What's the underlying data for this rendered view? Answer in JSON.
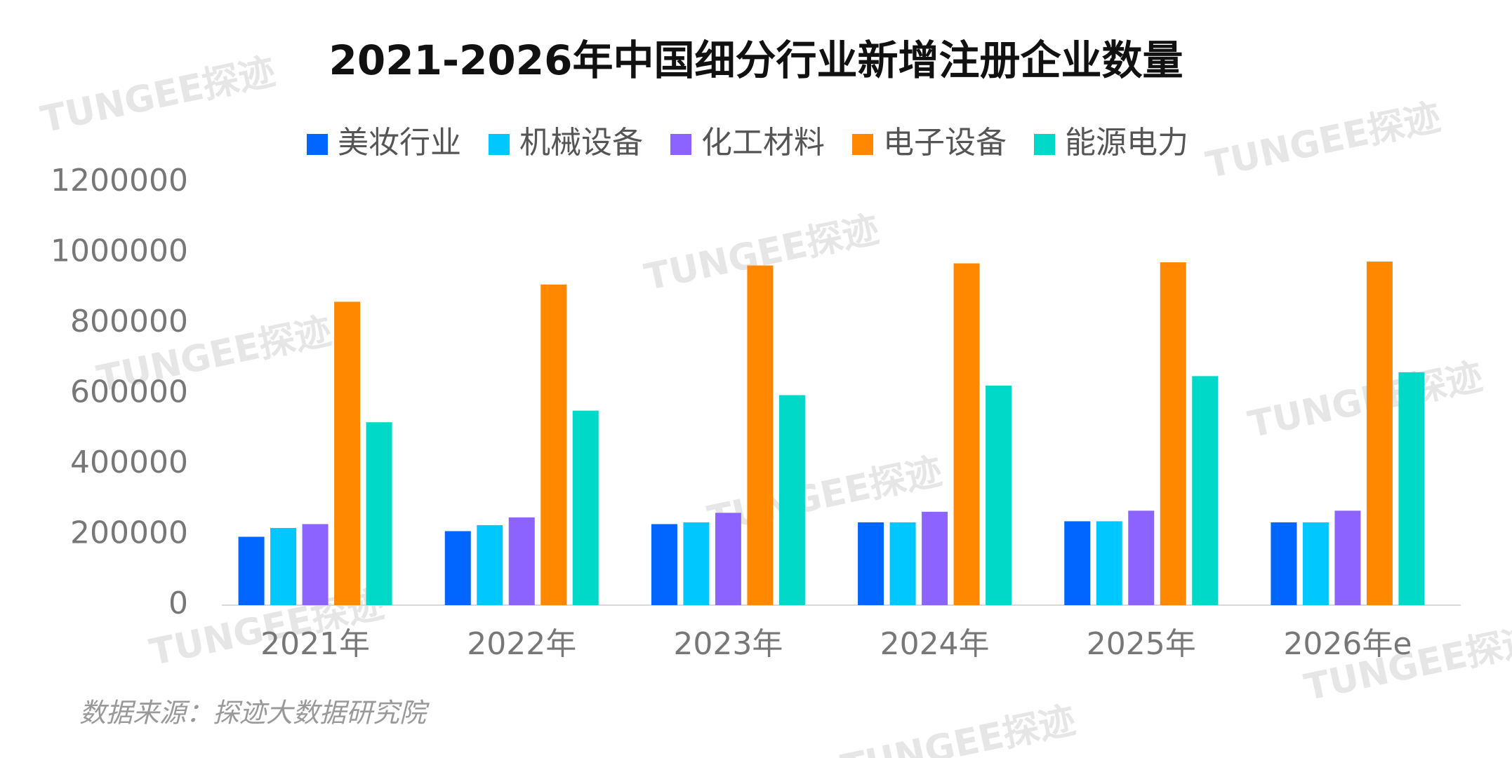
{
  "chart_data": {
    "type": "bar",
    "title": "2021-2026年中国细分行业新增注册企业数量",
    "categories": [
      "2021年",
      "2022年",
      "2023年",
      "2024年",
      "2025年",
      "2026年e"
    ],
    "series": [
      {
        "name": "美妆行业",
        "color": "#0066ff",
        "values": [
          194000,
          210000,
          230000,
          235000,
          238000,
          235000
        ]
      },
      {
        "name": "机械设备",
        "color": "#00c8ff",
        "values": [
          219000,
          227000,
          235000,
          235000,
          238000,
          235000
        ]
      },
      {
        "name": "化工材料",
        "color": "#8c63ff",
        "values": [
          230000,
          249000,
          262000,
          265000,
          268000,
          268000
        ]
      },
      {
        "name": "电子设备",
        "color": "#ff8800",
        "values": [
          861000,
          910000,
          964000,
          970000,
          973000,
          975000
        ]
      },
      {
        "name": "能源电力",
        "color": "#00d9c8",
        "values": [
          519000,
          552000,
          596000,
          623000,
          650000,
          661000
        ]
      }
    ],
    "ylim": [
      0,
      1200000
    ],
    "yticks": [
      0,
      200000,
      400000,
      600000,
      800000,
      1000000,
      1200000
    ],
    "legend": "top",
    "source": "数据来源：探迹大数据研究院",
    "watermark": "TUNGEE探迹"
  }
}
